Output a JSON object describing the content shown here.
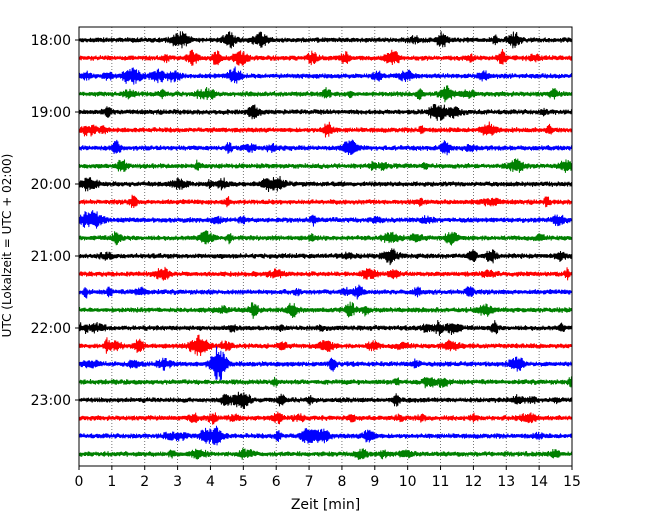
{
  "chart_data": {
    "type": "line",
    "title": "",
    "xlabel": "Zeit  [min]",
    "ylabel": "UTC (Lokalzeit = UTC + 02:00)",
    "xlim": [
      0,
      15
    ],
    "x_ticks": [
      0,
      1,
      2,
      3,
      4,
      5,
      6,
      7,
      8,
      9,
      10,
      11,
      12,
      13,
      14,
      15
    ],
    "y_tick_labels": [
      "18:00",
      "19:00",
      "20:00",
      "21:00",
      "22:00",
      "23:00"
    ],
    "grid": "vertical dotted",
    "colors": [
      "#000000",
      "#ff0000",
      "#0000ff",
      "#008000"
    ],
    "traces": [
      {
        "start": "18:00",
        "color": "#000000"
      },
      {
        "start": "18:15",
        "color": "#ff0000"
      },
      {
        "start": "18:30",
        "color": "#0000ff"
      },
      {
        "start": "18:45",
        "color": "#008000"
      },
      {
        "start": "19:00",
        "color": "#000000"
      },
      {
        "start": "19:15",
        "color": "#ff0000"
      },
      {
        "start": "19:30",
        "color": "#0000ff"
      },
      {
        "start": "19:45",
        "color": "#008000"
      },
      {
        "start": "20:00",
        "color": "#000000"
      },
      {
        "start": "20:15",
        "color": "#ff0000"
      },
      {
        "start": "20:30",
        "color": "#0000ff"
      },
      {
        "start": "20:45",
        "color": "#008000"
      },
      {
        "start": "21:00",
        "color": "#000000"
      },
      {
        "start": "21:15",
        "color": "#ff0000"
      },
      {
        "start": "21:30",
        "color": "#0000ff"
      },
      {
        "start": "21:45",
        "color": "#008000"
      },
      {
        "start": "22:00",
        "color": "#000000"
      },
      {
        "start": "22:15",
        "color": "#ff0000"
      },
      {
        "start": "22:30",
        "color": "#0000ff"
      },
      {
        "start": "22:45",
        "color": "#008000"
      },
      {
        "start": "23:00",
        "color": "#000000"
      },
      {
        "start": "23:15",
        "color": "#ff0000"
      },
      {
        "start": "23:30",
        "color": "#0000ff"
      },
      {
        "start": "23:45",
        "color": "#008000"
      }
    ]
  }
}
